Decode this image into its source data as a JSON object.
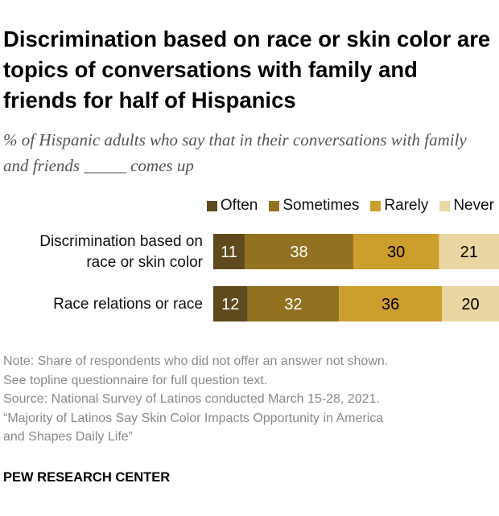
{
  "title": "Discrimination based on race or skin color are topics of conversations with family and friends for half of Hispanics",
  "subtitle": "% of Hispanic adults who say that in their conversations with family and friends _____ comes up",
  "chart_data": {
    "type": "bar",
    "orientation": "horizontal-stacked",
    "categories": [
      "Discrimination based on race or skin color",
      "Race relations or race"
    ],
    "series": [
      {
        "name": "Often",
        "values": [
          11,
          12
        ],
        "color": "#5e4a1c",
        "label_color": "#ffffff"
      },
      {
        "name": "Sometimes",
        "values": [
          38,
          32
        ],
        "color": "#927220",
        "label_color": "#ffffff"
      },
      {
        "name": "Rarely",
        "values": [
          30,
          36
        ],
        "color": "#cc9e2c",
        "label_color": "#000000"
      },
      {
        "name": "Never",
        "values": [
          21,
          20
        ],
        "color": "#e9d6a2",
        "label_color": "#000000"
      }
    ],
    "legend": "top-right",
    "grid": false
  },
  "notes": [
    "Note: Share of respondents who did not offer an answer not shown.",
    "See topline questionnaire for full question text.",
    "Source: National Survey of Latinos conducted March 15-28, 2021.",
    "“Majority of Latinos Say Skin Color Impacts Opportunity in America",
    "and Shapes Daily Life”"
  ],
  "brand": "PEW RESEARCH CENTER"
}
